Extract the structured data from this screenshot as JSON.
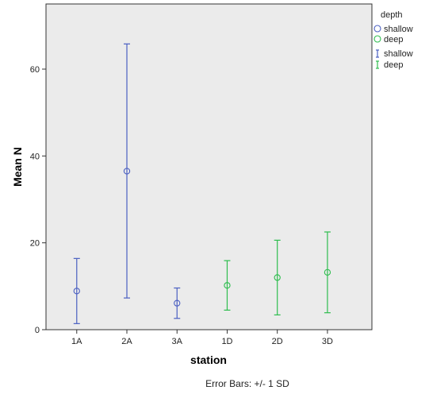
{
  "chart_data": {
    "type": "scatter",
    "xlabel": "station",
    "ylabel": "Mean N",
    "categories": [
      "1A",
      "2A",
      "3A",
      "1D",
      "2D",
      "3D"
    ],
    "ylim": [
      0,
      75
    ],
    "yticks": [
      0,
      20,
      40,
      60
    ],
    "grid": false,
    "legend_title": "depth",
    "legend_position": "top-right",
    "error_bar_note": "Error Bars: +/- 1 SD",
    "series": [
      {
        "name": "shallow",
        "color": "#4a5fc1",
        "marker": "circle",
        "categories": [
          "1A",
          "2A",
          "3A"
        ],
        "mean": [
          8.9,
          36.5,
          6.1
        ],
        "lower": [
          1.4,
          7.3,
          2.6
        ],
        "upper": [
          16.4,
          65.8,
          9.6
        ]
      },
      {
        "name": "deep",
        "color": "#2ebd4e",
        "marker": "circle",
        "categories": [
          "1D",
          "2D",
          "3D"
        ],
        "mean": [
          10.2,
          12.0,
          13.2
        ],
        "lower": [
          4.5,
          3.4,
          3.9
        ],
        "upper": [
          15.9,
          20.6,
          22.5
        ]
      }
    ],
    "legend": {
      "marker_entries": [
        "shallow",
        "deep"
      ],
      "errorbar_entries": [
        "shallow",
        "deep"
      ]
    }
  }
}
